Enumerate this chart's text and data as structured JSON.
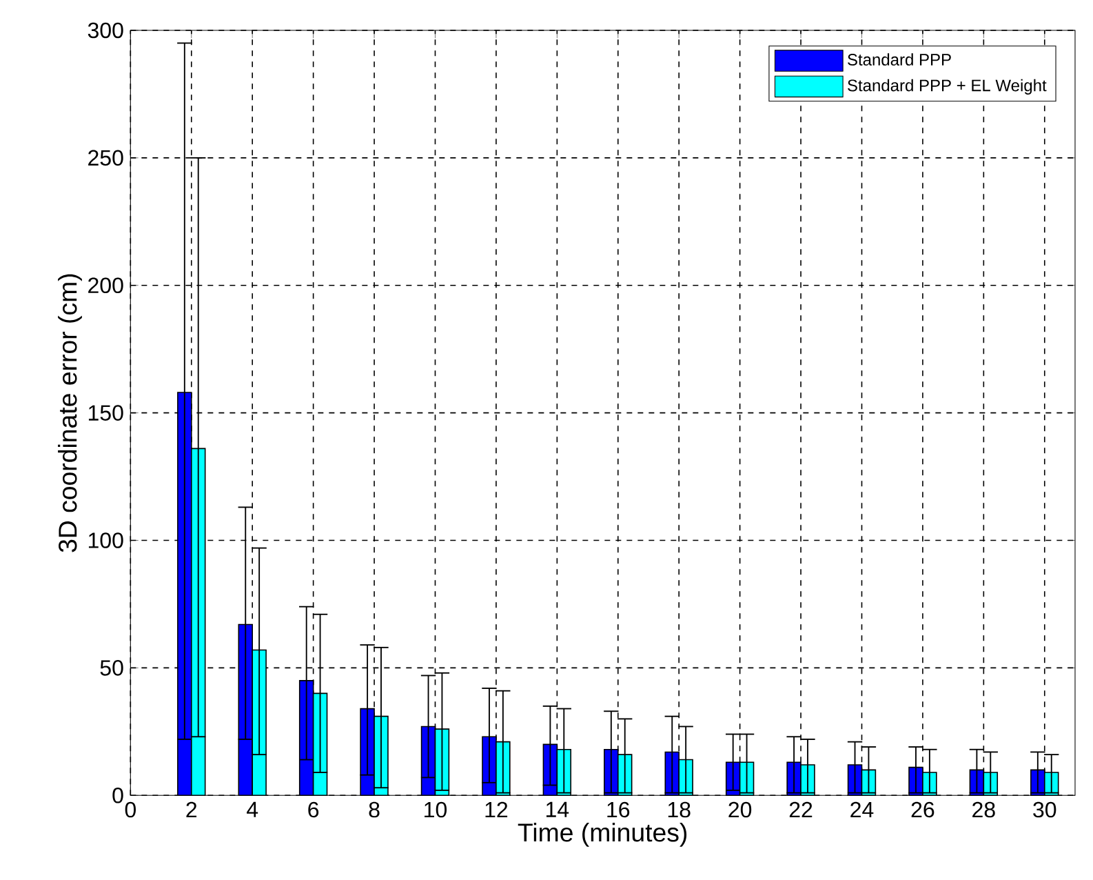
{
  "chart_data": {
    "type": "bar",
    "xlabel": "Time (minutes)",
    "ylabel": "3D coordinate error (cm)",
    "x": [
      2,
      4,
      6,
      8,
      10,
      12,
      14,
      16,
      18,
      20,
      22,
      24,
      26,
      28,
      30
    ],
    "series": [
      {
        "name": "Standard PPP",
        "color": "#0000ff",
        "values": [
          158,
          67,
          45,
          34,
          27,
          23,
          20,
          18,
          17,
          13,
          13,
          12,
          11,
          10,
          10
        ],
        "errors": [
          [
            22,
            295
          ],
          [
            22,
            113
          ],
          [
            14,
            74
          ],
          [
            8,
            59
          ],
          [
            7,
            47
          ],
          [
            5,
            42
          ],
          [
            4,
            35
          ],
          [
            1,
            33
          ],
          [
            1,
            31
          ],
          [
            2,
            24
          ],
          [
            1,
            23
          ],
          [
            1,
            21
          ],
          [
            1,
            19
          ],
          [
            1,
            18
          ],
          [
            1,
            17
          ]
        ]
      },
      {
        "name": "Standard PPP + EL Weight",
        "color": "#00ffff",
        "values": [
          136,
          57,
          40,
          31,
          26,
          21,
          18,
          16,
          14,
          13,
          12,
          10,
          9,
          9,
          9
        ],
        "errors": [
          [
            23,
            250
          ],
          [
            16,
            97
          ],
          [
            9,
            71
          ],
          [
            3,
            58
          ],
          [
            2,
            48
          ],
          [
            1,
            41
          ],
          [
            1,
            34
          ],
          [
            1,
            30
          ],
          [
            1,
            27
          ],
          [
            1,
            24
          ],
          [
            1,
            22
          ],
          [
            1,
            19
          ],
          [
            1,
            18
          ],
          [
            1,
            17
          ],
          [
            1,
            16
          ]
        ]
      }
    ],
    "xlim": [
      0,
      31
    ],
    "xticks": [
      0,
      2,
      4,
      6,
      8,
      10,
      12,
      14,
      16,
      18,
      20,
      22,
      24,
      26,
      28,
      30
    ],
    "ylim": [
      0,
      300
    ],
    "yticks": [
      0,
      50,
      100,
      150,
      200,
      250,
      300
    ],
    "grid": true,
    "legend": "top right"
  }
}
